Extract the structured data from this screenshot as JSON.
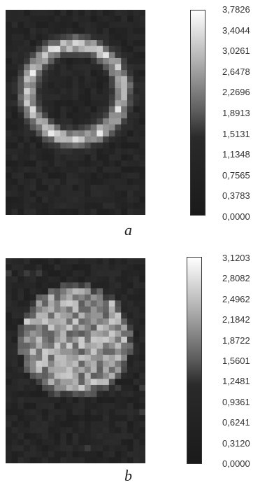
{
  "chart_data": [
    {
      "type": "heatmap",
      "panel_label": "a",
      "pattern": "ring",
      "grid": [
        23,
        34
      ],
      "colormap": [
        "#1a1a1a",
        "#ffffff"
      ],
      "value_range": [
        0.0,
        3.7826
      ],
      "colorbar_ticks": [
        "3,7826",
        "3,4044",
        "3,0261",
        "2,6478",
        "2,2696",
        "1,8913",
        "1,5131",
        "1,1348",
        "0,7565",
        "0,3783",
        "0,0000"
      ]
    },
    {
      "type": "heatmap",
      "panel_label": "b",
      "pattern": "disk",
      "grid": [
        23,
        34
      ],
      "colormap": [
        "#1a1a1a",
        "#ffffff"
      ],
      "value_range": [
        0.0,
        3.1203
      ],
      "colorbar_ticks": [
        "3,1203",
        "2,8082",
        "2,4962",
        "2,1842",
        "1,8722",
        "1,5601",
        "1,2481",
        "0,9361",
        "0,6241",
        "0,3120",
        "0,0000"
      ]
    }
  ]
}
